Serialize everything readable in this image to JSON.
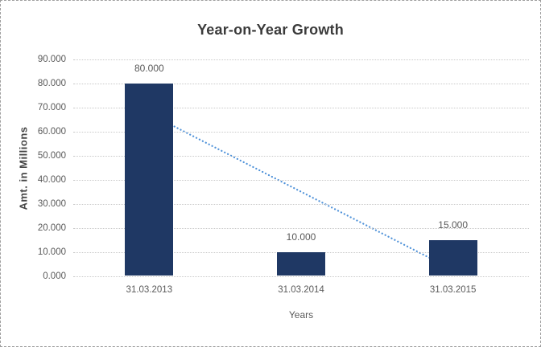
{
  "chart_data": {
    "type": "bar",
    "title": "Year-on-Year Growth",
    "categories": [
      "31.03.2013",
      "31.03.2014",
      "31.03.2015"
    ],
    "values": [
      80,
      10,
      15
    ],
    "value_labels": [
      "80.000",
      "10.000",
      "15.000"
    ],
    "xlabel": "Years",
    "ylabel": "Amt. in Millions",
    "ylim": [
      0,
      90
    ],
    "y_tick_step": 10,
    "y_tick_labels": [
      "0.000",
      "10.000",
      "20.000",
      "30.000",
      "40.000",
      "50.000",
      "60.000",
      "70.000",
      "80.000",
      "90.000"
    ],
    "grid": "horizontal-dotted",
    "legend": "none",
    "trendline": {
      "type": "linear",
      "style": "dotted",
      "start_category": "31.03.2013",
      "end_category": "31.03.2015",
      "start_value": 67.5,
      "end_value": 2.5
    },
    "colors": {
      "bar": "#1f3864",
      "trendline": "#4f92d9",
      "grid": "#c9c9c9",
      "axis_text": "#595959",
      "title_text": "#3b3b3b"
    }
  }
}
